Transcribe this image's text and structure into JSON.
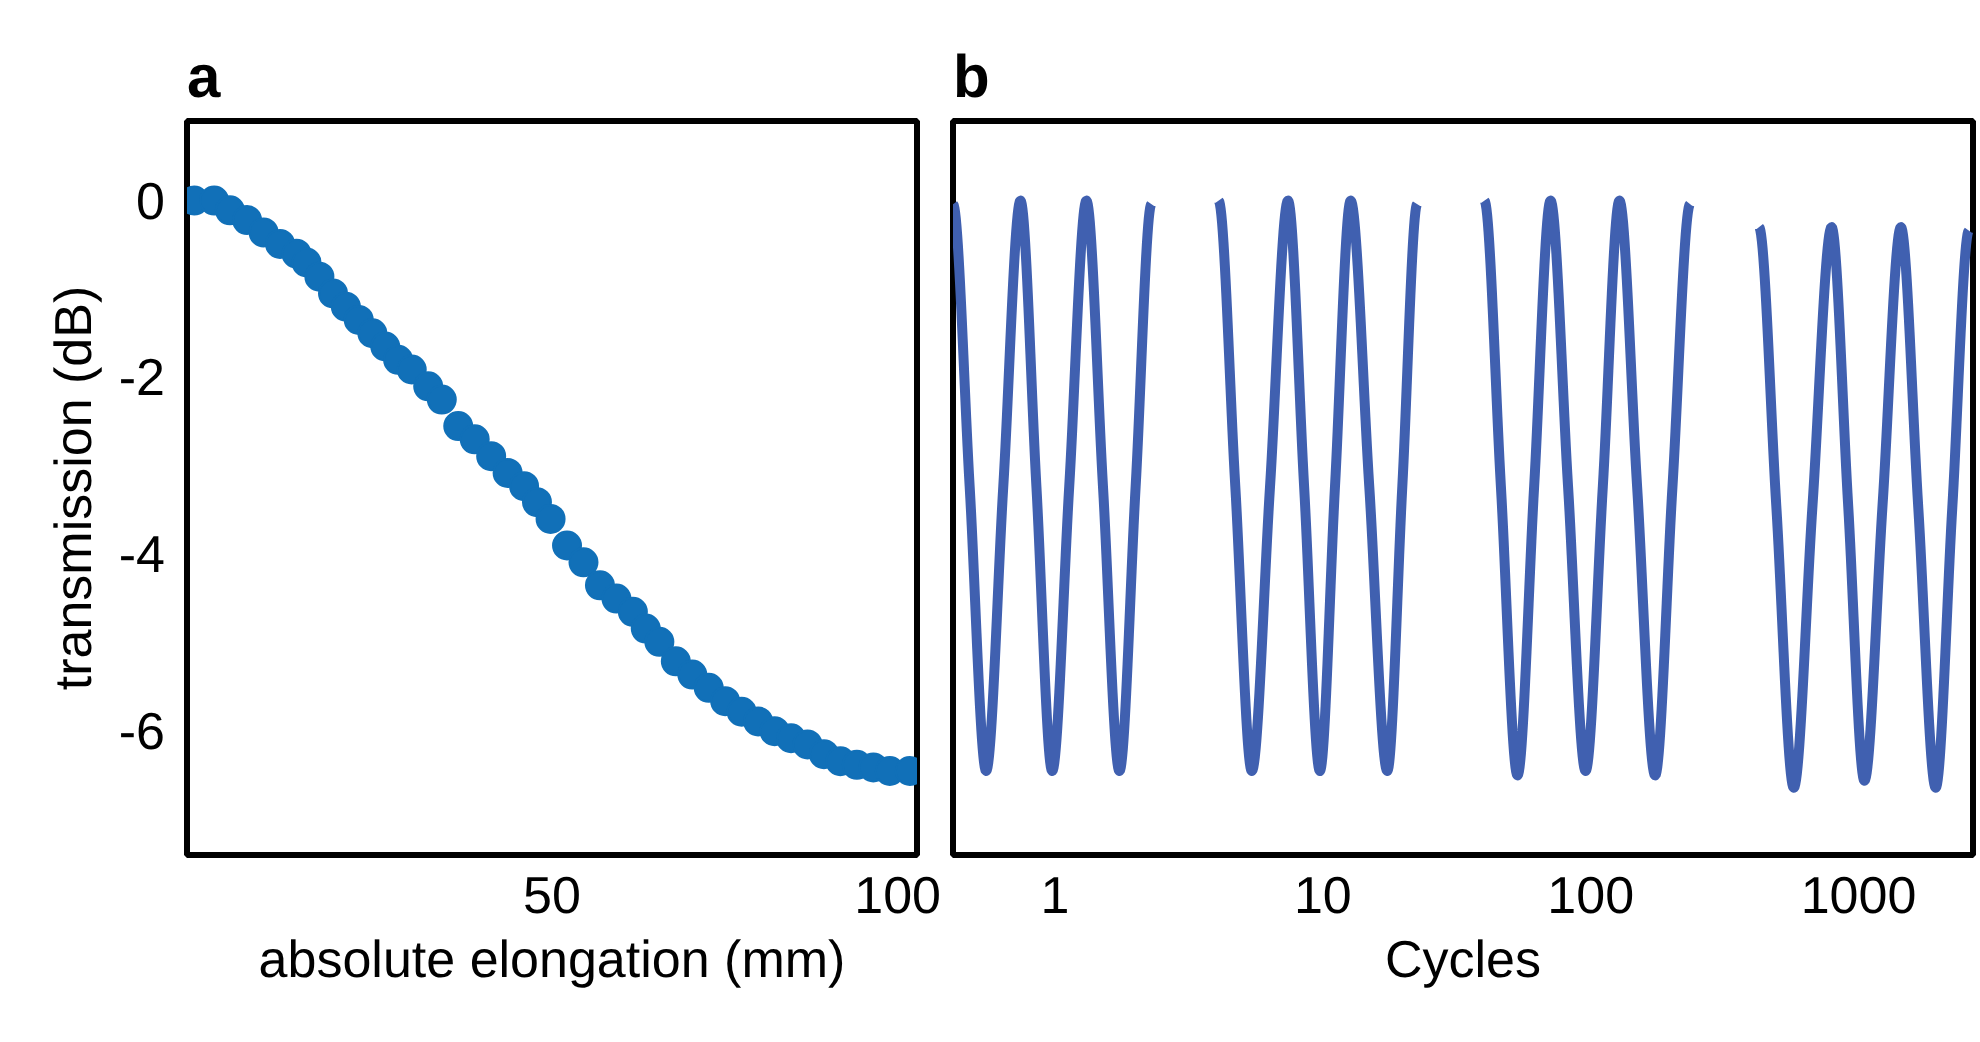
{
  "chart_data": [
    {
      "type": "scatter",
      "title": "a",
      "xlabel": "absolute elongation (mm)",
      "ylabel": "transmission (dB)",
      "xlim": [
        -1,
        101
      ],
      "xticks": [
        50,
        100
      ],
      "ylim": [
        -7.4,
        0.9
      ],
      "yticks": [
        0,
        -2,
        -4,
        -6
      ],
      "grid": false,
      "marker": "circle",
      "series": [
        {
          "color": "#1170b8",
          "x": [
            0,
            2.8,
            5,
            7.4,
            9.7,
            12,
            14.3,
            15.7,
            17.5,
            19.4,
            21.2,
            23,
            24.9,
            26.7,
            28.5,
            30.4,
            32.7,
            34.6,
            36.9,
            39.2,
            41.5,
            43.8,
            46.1,
            47.9,
            49.8,
            52.1,
            54.4,
            56.7,
            59,
            61.3,
            63.1,
            65,
            67.3,
            69.6,
            71.9,
            74.2,
            76.5,
            78.8,
            81.1,
            83.4,
            85.7,
            88,
            90.3,
            92.6,
            94.9,
            97.2,
            100
          ],
          "values": [
            0,
            0,
            -0.11,
            -0.22,
            -0.36,
            -0.49,
            -0.6,
            -0.7,
            -0.86,
            -1.05,
            -1.2,
            -1.35,
            -1.5,
            -1.65,
            -1.8,
            -1.91,
            -2.1,
            -2.25,
            -2.55,
            -2.7,
            -2.89,
            -3.08,
            -3.23,
            -3.41,
            -3.6,
            -3.9,
            -4.09,
            -4.35,
            -4.5,
            -4.65,
            -4.84,
            -4.99,
            -5.21,
            -5.36,
            -5.51,
            -5.66,
            -5.78,
            -5.89,
            -6,
            -6.08,
            -6.15,
            -6.26,
            -6.34,
            -6.38,
            -6.41,
            -6.45,
            -6.45
          ]
        }
      ]
    },
    {
      "type": "line",
      "title": "b",
      "xlabel": "Cycles",
      "log": "x",
      "xlim": [
        0.416,
        2675
      ],
      "xticks": [
        1,
        10,
        100,
        1000
      ],
      "ylim": [
        -7.4,
        0.9
      ],
      "tick_labels": "x",
      "grid": false,
      "line_style": "solid",
      "series": [
        {
          "color": "#4060b0",
          "x": [
            0.416,
            0.48,
            0.553,
            0.641,
            0.743,
            0.852,
            0.976,
            1.13,
            1.31,
            1.51,
            1.74,
            2.0,
            2.29
          ],
          "values": [
            -0.04,
            -3.23,
            -6.45,
            -3.23,
            0,
            -3.23,
            -6.45,
            -3.23,
            0,
            -3.23,
            -6.45,
            -3.23,
            -0.04
          ]
        },
        {
          "color": "#4060b0",
          "x": [
            4.08,
            4.71,
            5.43,
            6.35,
            7.41,
            8.51,
            9.75,
            11.1,
            12.7,
            14.9,
            17.4,
            19.8,
            22.5
          ],
          "values": [
            0,
            -3.23,
            -6.45,
            -3.23,
            0,
            -3.23,
            -6.45,
            -3.23,
            0,
            -3.23,
            -6.45,
            -3.23,
            -0.04
          ]
        },
        {
          "color": "#4060b0",
          "x": [
            40.1,
            46.2,
            53.3,
            61.5,
            70.8,
            82.3,
            95.7,
            111,
            128,
            149,
            174,
            202,
            235
          ],
          "values": [
            0,
            -3.23,
            -6.5,
            -3.23,
            0,
            -3.23,
            -6.45,
            -3.23,
            0,
            -3.23,
            -6.5,
            -3.23,
            -0.04
          ]
        },
        {
          "color": "#4060b0",
          "x": [
            425,
            493,
            573,
            673,
            793,
            914,
            1052,
            1230,
            1439,
            1671,
            1941,
            2239,
            2582
          ],
          "values": [
            -0.3,
            -3.45,
            -6.64,
            -3.45,
            -0.3,
            -3.43,
            -6.56,
            -3.43,
            -0.3,
            -3.47,
            -6.64,
            -3.47,
            -0.34
          ]
        }
      ]
    }
  ]
}
